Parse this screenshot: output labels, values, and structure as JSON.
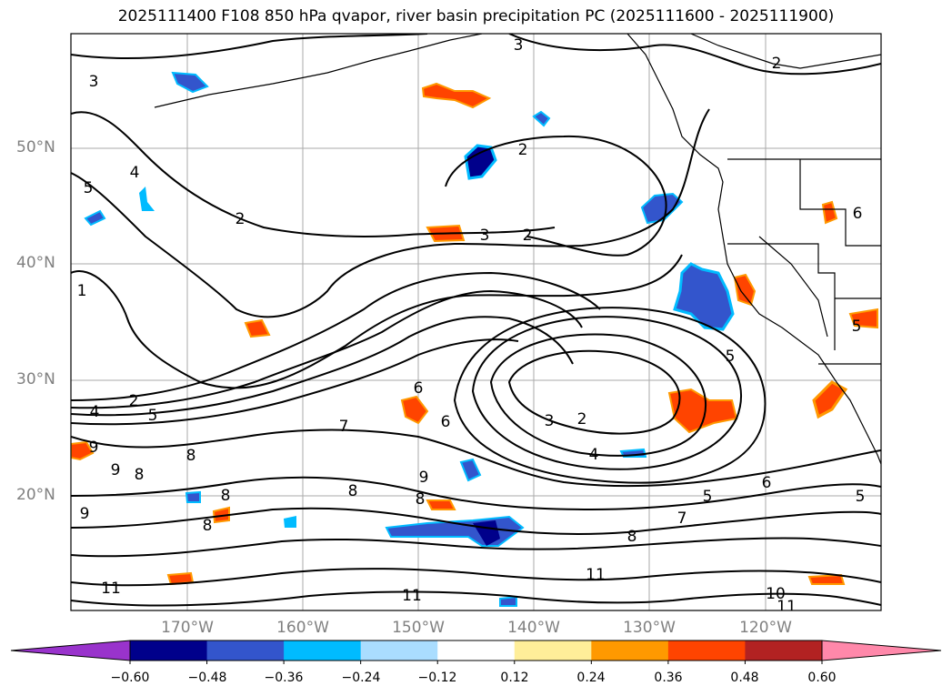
{
  "title": "2025111400 F108 850 hPa qvapor, river basin precipitation PC (2025111600 - 2025111900)",
  "lat_labels": [
    "50°N",
    "40°N",
    "30°N",
    "20°N"
  ],
  "lon_labels": [
    "170°W",
    "160°W",
    "150°W",
    "140°W",
    "130°W",
    "120°W"
  ],
  "colorbar": {
    "ticks": [
      "−0.60",
      "−0.48",
      "−0.36",
      "−0.24",
      "−0.12",
      "0.12",
      "0.24",
      "0.36",
      "0.48",
      "0.60"
    ],
    "colors": {
      "below": "#9933cc",
      "bins": [
        "#00008b",
        "#3355cc",
        "#00bbff",
        "#aaddff",
        "#ffffff",
        "#ffee99",
        "#ff9900",
        "#ff4400",
        "#b22222"
      ],
      "above": "#ff88aa"
    }
  },
  "contour_labels": [
    "3",
    "2",
    "3",
    "2",
    "4",
    "5",
    "2",
    "3",
    "2",
    "1",
    "2",
    "4",
    "5",
    "6",
    "6",
    "7",
    "6",
    "3",
    "2",
    "4",
    "5",
    "9",
    "9",
    "8",
    "8",
    "8",
    "9",
    "8",
    "8",
    "9",
    "8",
    "8",
    "7",
    "5",
    "5",
    "6",
    "5",
    "11",
    "11",
    "11",
    "10",
    "11"
  ],
  "colors": {
    "contour": "#000000",
    "grid": "#aaaaaa",
    "coast": "#000000"
  }
}
